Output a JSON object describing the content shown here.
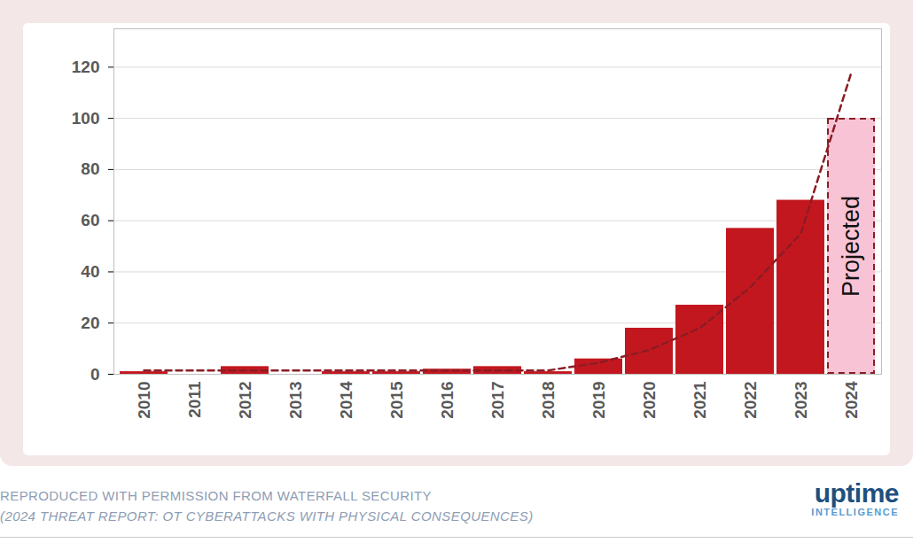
{
  "chart_data": {
    "type": "bar",
    "categories": [
      "2010",
      "2011",
      "2012",
      "2013",
      "2014",
      "2015",
      "2016",
      "2017",
      "2018",
      "2019",
      "2020",
      "2021",
      "2022",
      "2023",
      "2024"
    ],
    "series": [
      {
        "type": "bar",
        "values": [
          1,
          0,
          3,
          0,
          1,
          1,
          2,
          3,
          1,
          6,
          18,
          27,
          57,
          68,
          100
        ],
        "colors": [
          "#c3171f",
          "#c3171f",
          "#c3171f",
          "#c3171f",
          "#c3171f",
          "#c3171f",
          "#c3171f",
          "#c3171f",
          "#c3171f",
          "#c3171f",
          "#c3171f",
          "#c3171f",
          "#c3171f",
          "#c3171f",
          "#f8c4d5"
        ]
      },
      {
        "type": "line",
        "color": "#8b1c24",
        "line_style": "dashed",
        "values": [
          1.5,
          1.5,
          1.5,
          1.5,
          1.5,
          1.5,
          1.5,
          1.5,
          1.5,
          4.5,
          9.5,
          18,
          34,
          55,
          118
        ]
      }
    ],
    "ylim": [
      0,
      135
    ],
    "yticks": [
      0,
      20,
      40,
      60,
      80,
      100,
      120
    ],
    "grid": true,
    "annotations": [
      {
        "text": "Projected",
        "category": "2024"
      }
    ],
    "caption": [
      "REPRODUCED WITH PERMISSION FROM WATERFALL SECURITY",
      "(2024 THREAT REPORT: OT CYBERATTACKS WITH PHYSICAL CONSEQUENCES)"
    ],
    "logo": [
      "uptime",
      "INTELLIGENCE"
    ]
  }
}
